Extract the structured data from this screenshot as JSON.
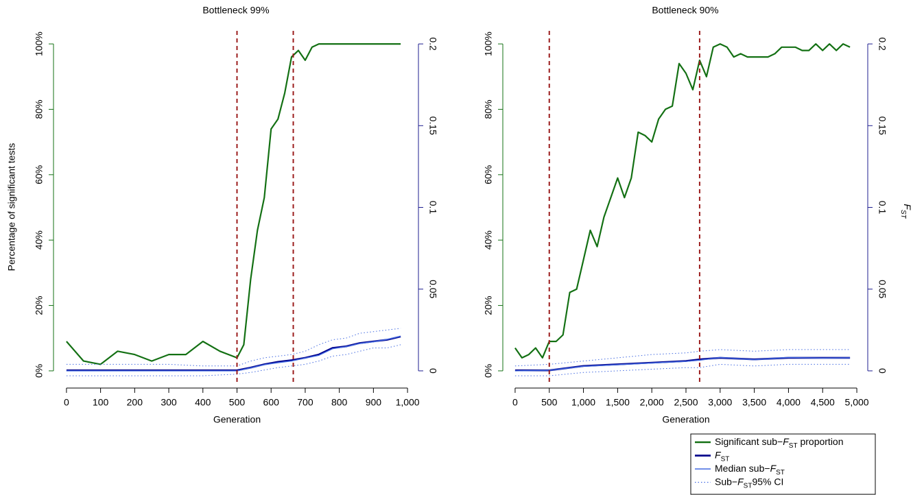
{
  "chart_data": [
    {
      "type": "line",
      "title": "Bottleneck 99%",
      "x_label": "Generation",
      "y_label": "Percentage of significant tests",
      "xlim": [
        -38,
        1032
      ],
      "xticks": [
        0,
        100,
        200,
        300,
        400,
        500,
        600,
        700,
        800,
        900,
        {
          "value": 1000,
          "label": "1,000"
        }
      ],
      "ylim": [
        -4,
        104
      ],
      "yticks": [
        {
          "value": 0,
          "label": "0%"
        },
        {
          "value": 20,
          "label": "20%"
        },
        {
          "value": 40,
          "label": "40%"
        },
        {
          "value": 60,
          "label": "60%"
        },
        {
          "value": 80,
          "label": "80%"
        },
        {
          "value": 100,
          "label": "100%"
        }
      ],
      "y2lim": [
        -0.008,
        0.208
      ],
      "y2ticks": [
        0,
        0.05,
        0.1,
        0.15,
        0.2
      ],
      "y_color": "#137013",
      "y2_color": "#1c1c8f",
      "vlines": [
        500,
        665
      ],
      "vline_color": "#9b1c1c",
      "series": [
        {
          "color": "#137013",
          "x": [
            0,
            50,
            100,
            150,
            200,
            250,
            300,
            350,
            400,
            450,
            500,
            520,
            540,
            560,
            580,
            600,
            620,
            640,
            660,
            680,
            700,
            720,
            740,
            760,
            780,
            800,
            820,
            840,
            860,
            880,
            900,
            920,
            940,
            960,
            980
          ],
          "values": [
            9,
            3,
            2,
            6,
            5,
            3,
            5,
            5,
            9,
            6,
            4,
            8,
            28,
            43,
            53,
            74,
            77,
            85,
            96,
            98,
            95,
            99,
            100,
            100,
            100,
            100,
            100,
            100,
            100,
            100,
            100,
            100,
            100,
            100,
            100
          ]
        },
        {
          "color": "#00008b",
          "axis": "y2",
          "x": [
            0,
            100,
            200,
            300,
            400,
            500,
            540,
            580,
            620,
            660,
            700,
            740,
            780,
            820,
            860,
            900,
            940,
            980
          ],
          "values": [
            0.0003,
            0.0003,
            0.0003,
            0.0003,
            0.0003,
            0.0003,
            0.002,
            0.004,
            0.0055,
            0.0065,
            0.008,
            0.01,
            0.014,
            0.015,
            0.017,
            0.018,
            0.019,
            0.021
          ]
        },
        {
          "color": "#4169e1",
          "axis": "y2",
          "x": [
            0,
            100,
            200,
            300,
            400,
            500,
            540,
            580,
            620,
            660,
            700,
            740,
            780,
            820,
            860,
            900,
            940,
            980
          ],
          "values": [
            0,
            0,
            0,
            0,
            0,
            0,
            0.0018,
            0.0038,
            0.005,
            0.006,
            0.0078,
            0.0095,
            0.0135,
            0.0148,
            0.0168,
            0.0178,
            0.0192,
            0.0212
          ]
        },
        {
          "color": "#4169e1",
          "axis": "y2",
          "dotted": true,
          "x": [
            0,
            100,
            200,
            300,
            400,
            500,
            540,
            580,
            620,
            660,
            700,
            740,
            780,
            820,
            860,
            900,
            940,
            980
          ],
          "values": [
            -0.003,
            -0.003,
            -0.003,
            -0.003,
            -0.003,
            -0.002,
            -0.001,
            0.0005,
            0.002,
            0.003,
            0.004,
            0.006,
            0.009,
            0.01,
            0.012,
            0.014,
            0.014,
            0.016
          ],
          "upper": [
            0.004,
            0.004,
            0.004,
            0.004,
            0.003,
            0.003,
            0.006,
            0.008,
            0.009,
            0.01,
            0.012,
            0.016,
            0.019,
            0.02,
            0.023,
            0.024,
            0.025,
            0.026
          ]
        }
      ]
    },
    {
      "type": "line",
      "title": "Bottleneck 90%",
      "x_label": "Generation",
      "y2_label": "FST",
      "xlim": [
        -180,
        5160
      ],
      "xticks": [
        0,
        500,
        {
          "value": 1000,
          "label": "1,000"
        },
        {
          "value": 1500,
          "label": "1,500"
        },
        {
          "value": 2000,
          "label": "2,000"
        },
        {
          "value": 2500,
          "label": "2,500"
        },
        {
          "value": 3000,
          "label": "3,000"
        },
        {
          "value": 3500,
          "label": "3,500"
        },
        {
          "value": 4000,
          "label": "4,000"
        },
        {
          "value": 4500,
          "label": "4,500"
        },
        {
          "value": 5000,
          "label": "5,000"
        }
      ],
      "ylim": [
        -4,
        104
      ],
      "yticks": [
        {
          "value": 0,
          "label": "0%"
        },
        {
          "value": 20,
          "label": "20%"
        },
        {
          "value": 40,
          "label": "40%"
        },
        {
          "value": 60,
          "label": "60%"
        },
        {
          "value": 80,
          "label": "80%"
        },
        {
          "value": 100,
          "label": "100%"
        }
      ],
      "y2lim": [
        -0.008,
        0.208
      ],
      "y2ticks": [
        0,
        0.05,
        0.1,
        0.15,
        0.2
      ],
      "y_color": "#137013",
      "y2_color": "#1c1c8f",
      "vlines": [
        500,
        2700
      ],
      "vline_color": "#9b1c1c",
      "legend": "bottom right",
      "series": [
        {
          "name": "Significant sub−FST proportion",
          "color": "#137013",
          "x": [
            0,
            100,
            200,
            300,
            400,
            500,
            600,
            700,
            800,
            900,
            1000,
            1100,
            1200,
            1300,
            1400,
            1500,
            1600,
            1700,
            1800,
            1900,
            2000,
            2100,
            2200,
            2300,
            2400,
            2500,
            2600,
            2700,
            2800,
            2900,
            3000,
            3100,
            3200,
            3300,
            3400,
            3500,
            3600,
            3700,
            3800,
            3900,
            4000,
            4100,
            4200,
            4300,
            4400,
            4500,
            4600,
            4700,
            4800,
            4900
          ],
          "values": [
            7,
            4,
            5,
            7,
            4,
            9,
            9,
            11,
            24,
            25,
            34,
            43,
            38,
            47,
            53,
            59,
            53,
            59,
            73,
            72,
            70,
            77,
            80,
            81,
            94,
            91,
            86,
            95,
            90,
            99,
            100,
            99,
            96,
            97,
            96,
            96,
            96,
            96,
            97,
            99,
            99,
            99,
            98,
            98,
            100,
            98,
            100,
            98,
            100,
            99
          ]
        },
        {
          "name": "FST",
          "color": "#00008b",
          "axis": "y2",
          "x": [
            0,
            500,
            1000,
            1500,
            2000,
            2500,
            2700,
            3000,
            3500,
            4000,
            4500,
            4900
          ],
          "values": [
            0.0003,
            0.0003,
            0.003,
            0.004,
            0.005,
            0.006,
            0.007,
            0.008,
            0.007,
            0.008,
            0.008,
            0.008
          ]
        },
        {
          "name": "Median sub−FST",
          "color": "#4169e1",
          "axis": "y2",
          "x": [
            0,
            500,
            1000,
            1500,
            2000,
            2500,
            2700,
            3000,
            3500,
            4000,
            4500,
            4900
          ],
          "values": [
            0,
            0.0003,
            0.0028,
            0.0038,
            0.0048,
            0.0058,
            0.0065,
            0.0082,
            0.0068,
            0.0082,
            0.0078,
            0.008
          ]
        },
        {
          "name": "Sub−FST95% CI",
          "color": "#4169e1",
          "axis": "y2",
          "dotted": true,
          "x": [
            0,
            500,
            1000,
            1500,
            2000,
            2500,
            2700,
            3000,
            3500,
            4000,
            4500,
            4900
          ],
          "values": [
            -0.003,
            -0.003,
            -0.001,
            0,
            0.001,
            0.002,
            0.002,
            0.004,
            0.003,
            0.004,
            0.004,
            0.004
          ],
          "upper": [
            0.003,
            0.004,
            0.006,
            0.008,
            0.01,
            0.011,
            0.012,
            0.013,
            0.012,
            0.013,
            0.013,
            0.013
          ]
        }
      ]
    }
  ]
}
